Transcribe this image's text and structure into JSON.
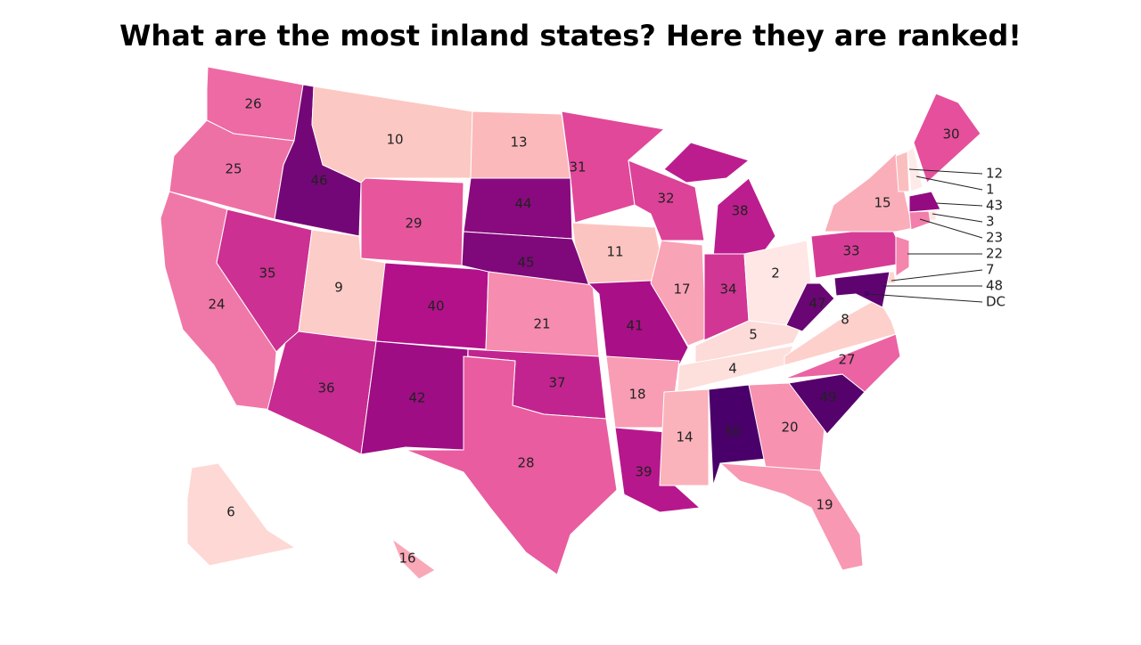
{
  "title": "What are the most inland states? Here they are ranked!",
  "color_scale": [
    "#feebe9",
    "#fcc5c0",
    "#f78fb0",
    "#e44c9a",
    "#b1108a",
    "#4a006a"
  ],
  "states": [
    {
      "rank": 26
    },
    {
      "rank": 25
    },
    {
      "rank": 24
    },
    {
      "rank": 46
    },
    {
      "rank": 35
    },
    {
      "rank": 10
    },
    {
      "rank": 29
    },
    {
      "rank": 9
    },
    {
      "rank": 40
    },
    {
      "rank": 36
    },
    {
      "rank": 42
    },
    {
      "rank": 13
    },
    {
      "rank": 44
    },
    {
      "rank": 45
    },
    {
      "rank": 21
    },
    {
      "rank": 37
    },
    {
      "rank": 28
    },
    {
      "rank": 31
    },
    {
      "rank": 11
    },
    {
      "rank": 41
    },
    {
      "rank": 18
    },
    {
      "rank": 39
    },
    {
      "rank": 32
    },
    {
      "rank": 17
    },
    {
      "rank": 38
    },
    {
      "rank": 34
    },
    {
      "rank": 2
    },
    {
      "rank": 5
    },
    {
      "rank": 4
    },
    {
      "rank": 14
    },
    {
      "rank": 50
    },
    {
      "rank": 20
    },
    {
      "rank": 19
    },
    {
      "rank": 49
    },
    {
      "rank": 27
    },
    {
      "rank": 8
    },
    {
      "rank": 47
    },
    {
      "rank": 33
    },
    {
      "rank": 15
    },
    {
      "rank": 30
    },
    {
      "rank": 6
    },
    {
      "rank": 16
    },
    {
      "rank": 12
    },
    {
      "rank": 1
    },
    {
      "rank": 43
    },
    {
      "rank": 3
    },
    {
      "rank": 23
    },
    {
      "rank": 22
    },
    {
      "rank": 7
    },
    {
      "rank": 48
    }
  ],
  "dc": {
    "label": "DC"
  }
}
